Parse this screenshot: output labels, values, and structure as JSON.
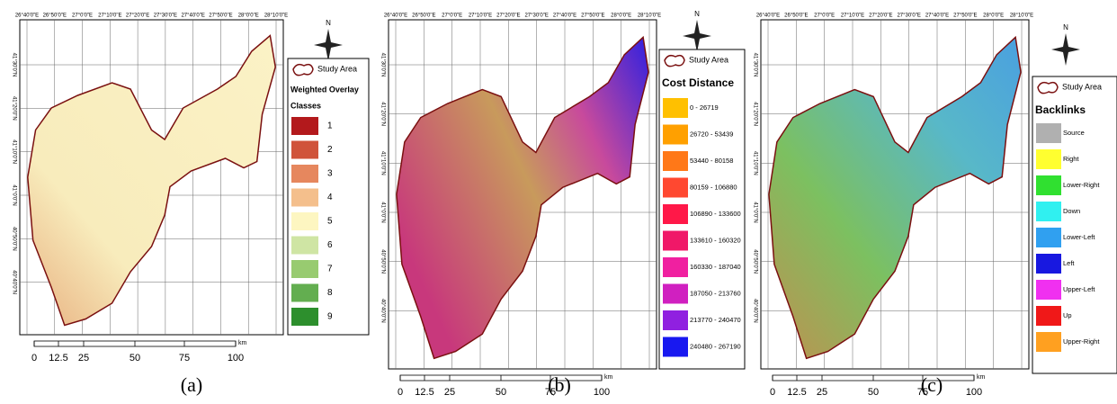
{
  "graticule": {
    "longitudes": [
      "26°40'0\"E",
      "26°50'0\"E",
      "27°0'0\"E",
      "27°10'0\"E",
      "27°20'0\"E",
      "27°30'0\"E",
      "27°40'0\"E",
      "27°50'0\"E",
      "28°0'0\"E",
      "28°10'0\"E"
    ],
    "latitudes": [
      "41°30'0\"N",
      "41°20'0\"N",
      "41°10'0\"N",
      "41°0'0\"N",
      "40°50'0\"N",
      "40°40'0\"N"
    ]
  },
  "north_arrow": "N",
  "scale_bar": {
    "labels": [
      "0",
      "12.5",
      "25",
      "50",
      "75",
      "100"
    ],
    "unit": "km"
  },
  "panels": [
    {
      "caption": "(a)",
      "study_area": "Study Area",
      "legend_title": "Weighted Overlay",
      "legend_subtitle": "Classes",
      "items": [
        {
          "label": "1",
          "color": "#b3191c"
        },
        {
          "label": "2",
          "color": "#d0533a"
        },
        {
          "label": "3",
          "color": "#e6875e"
        },
        {
          "label": "4",
          "color": "#f4bf8c"
        },
        {
          "label": "5",
          "color": "#fdf6c1"
        },
        {
          "label": "6",
          "color": "#cfe5a4"
        },
        {
          "label": "7",
          "color": "#98cb70"
        },
        {
          "label": "8",
          "color": "#63ae50"
        },
        {
          "label": "9",
          "color": "#2d8f2d"
        }
      ]
    },
    {
      "caption": "(b)",
      "study_area": "Study Area",
      "legend_title": "Cost Distance",
      "items": [
        {
          "label": "0 - 26719",
          "color": "#ffc000"
        },
        {
          "label": "26720 - 53439",
          "color": "#ffa000"
        },
        {
          "label": "53440 - 80158",
          "color": "#ff7818"
        },
        {
          "label": "80159 - 106880",
          "color": "#ff4830"
        },
        {
          "label": "106890 - 133600",
          "color": "#ff1848"
        },
        {
          "label": "133610 - 160320",
          "color": "#f01868"
        },
        {
          "label": "160330 - 187040",
          "color": "#f020a0"
        },
        {
          "label": "187050 - 213760",
          "color": "#d020c0"
        },
        {
          "label": "213770 - 240470",
          "color": "#9020e0"
        },
        {
          "label": "240480 - 267190",
          "color": "#1818f0"
        }
      ]
    },
    {
      "caption": "(c)",
      "study_area": "Study Area",
      "legend_title": "Backlinks",
      "items": [
        {
          "label": "Source",
          "color": "#b0b0b0"
        },
        {
          "label": "Right",
          "color": "#ffff30"
        },
        {
          "label": "Lower-Right",
          "color": "#30e030"
        },
        {
          "label": "Down",
          "color": "#30f0f0"
        },
        {
          "label": "Lower-Left",
          "color": "#30a0f0"
        },
        {
          "label": "Left",
          "color": "#1818e0"
        },
        {
          "label": "Upper-Left",
          "color": "#f030f0"
        },
        {
          "label": "Up",
          "color": "#f01818"
        },
        {
          "label": "Upper-Right",
          "color": "#ffa020"
        }
      ]
    }
  ]
}
